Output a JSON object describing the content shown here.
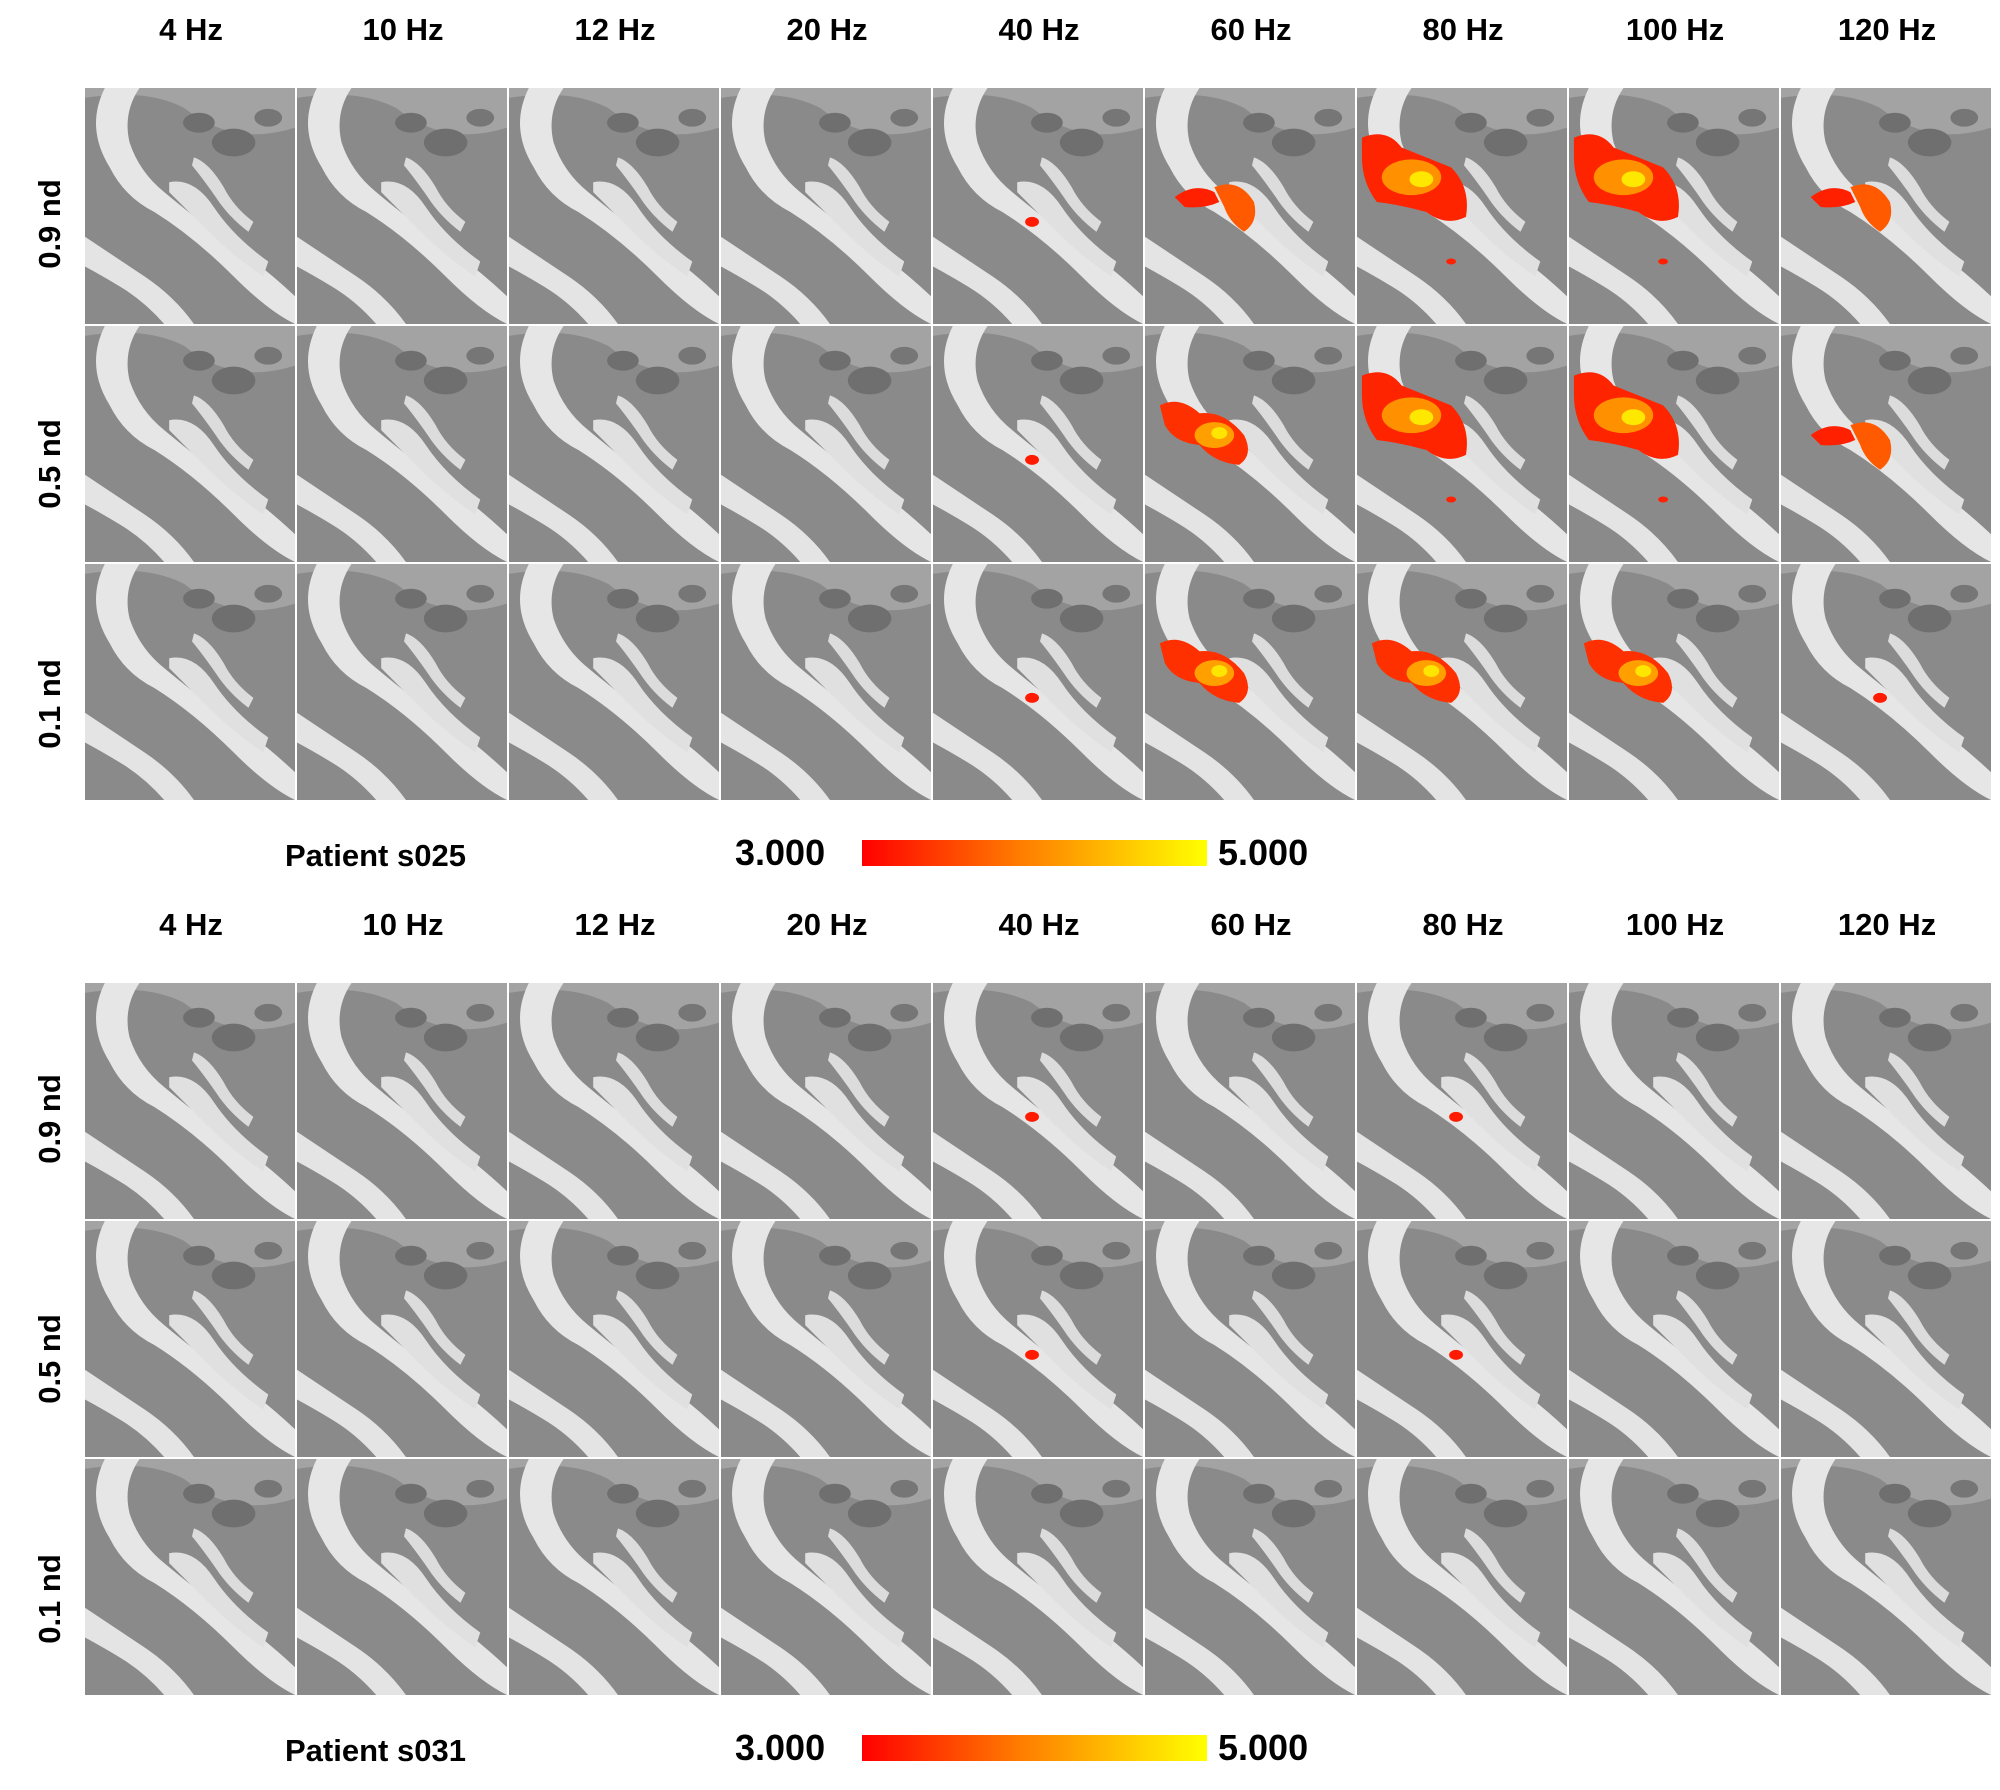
{
  "figure": {
    "panels": [
      {
        "patient_label": "Patient s025",
        "frequencies": [
          "4 Hz",
          "10 Hz",
          "12 Hz",
          "20 Hz",
          "40 Hz",
          "60 Hz",
          "80 Hz",
          "100 Hz",
          "120 Hz"
        ],
        "rows": [
          "0.9 nd",
          "0.5 nd",
          "0.1 nd"
        ],
        "colorbar": {
          "min": "3.000",
          "max": "5.000",
          "min_color": "#ff0000",
          "max_color": "#ffff00"
        },
        "activation": [
          [
            0,
            0,
            0,
            0,
            1,
            2,
            4,
            4,
            2
          ],
          [
            0,
            0,
            0,
            0,
            1,
            3,
            4,
            4,
            2
          ],
          [
            0,
            0,
            0,
            0,
            1,
            3,
            3,
            3,
            1
          ]
        ]
      },
      {
        "patient_label": "Patient s031",
        "frequencies": [
          "4 Hz",
          "10 Hz",
          "12 Hz",
          "20 Hz",
          "40 Hz",
          "60 Hz",
          "80 Hz",
          "100 Hz",
          "120 Hz"
        ],
        "rows": [
          "0.9 nd",
          "0.5 nd",
          "0.1 nd"
        ],
        "colorbar": {
          "min": "3.000",
          "max": "5.000",
          "min_color": "#ff0000",
          "max_color": "#ffff00"
        },
        "activation": [
          [
            0,
            0,
            0,
            0,
            1,
            0,
            1,
            0,
            0
          ],
          [
            0,
            0,
            0,
            0,
            1,
            0,
            1,
            0,
            0
          ],
          [
            0,
            0,
            0,
            0,
            0,
            0,
            0,
            0,
            0
          ]
        ]
      }
    ]
  }
}
